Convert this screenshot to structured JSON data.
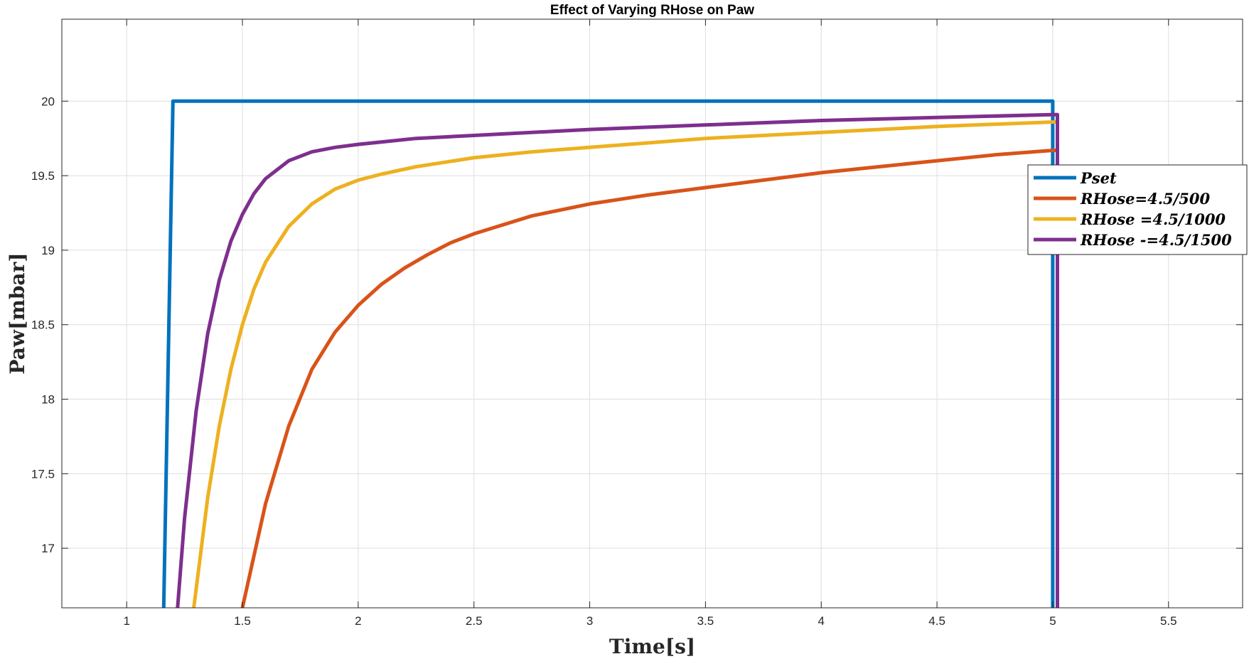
{
  "chart_data": {
    "type": "line",
    "title": "Effect of Varying RHose on Paw",
    "xlabel": "Time[s]",
    "ylabel": "Paw[mbar]",
    "xlim": [
      0.72,
      5.82
    ],
    "ylim": [
      16.6,
      20.55
    ],
    "xticks": [
      1,
      1.5,
      2,
      2.5,
      3,
      3.5,
      4,
      4.5,
      5,
      5.5
    ],
    "xtick_labels": [
      "1",
      "1.5",
      "2",
      "2.5",
      "3",
      "3.5",
      "4",
      "4.5",
      "5",
      "5.5"
    ],
    "yticks": [
      17,
      17.5,
      18,
      18.5,
      19,
      19.5,
      20
    ],
    "ytick_labels": [
      "17",
      "17.5",
      "18",
      "18.5",
      "19",
      "19.5",
      "20"
    ],
    "grid": true,
    "legend_position": "right",
    "series": [
      {
        "name": "Pset",
        "color": "#0072BD",
        "x": [
          1.16,
          1.2,
          5.0,
          5.0
        ],
        "y": [
          16.6,
          20.0,
          20.0,
          16.6
        ]
      },
      {
        "name": "RHose=4.5/500",
        "color": "#D95319",
        "x": [
          1.5,
          1.6,
          1.7,
          1.8,
          1.9,
          2.0,
          2.1,
          2.2,
          2.3,
          2.4,
          2.5,
          2.75,
          3.0,
          3.25,
          3.5,
          3.75,
          4.0,
          4.25,
          4.5,
          4.75,
          5.0,
          5.02,
          5.02
        ],
        "y": [
          16.6,
          17.3,
          17.82,
          18.2,
          18.45,
          18.63,
          18.77,
          18.88,
          18.97,
          19.05,
          19.11,
          19.23,
          19.31,
          19.37,
          19.42,
          19.47,
          19.52,
          19.56,
          19.6,
          19.64,
          19.67,
          19.67,
          16.6
        ]
      },
      {
        "name": "RHose =4.5/1000",
        "color": "#EDB120",
        "x": [
          1.29,
          1.35,
          1.4,
          1.45,
          1.5,
          1.55,
          1.6,
          1.7,
          1.8,
          1.9,
          2.0,
          2.1,
          2.25,
          2.5,
          2.75,
          3.0,
          3.5,
          4.0,
          4.5,
          5.0,
          5.02,
          5.02
        ],
        "y": [
          16.6,
          17.34,
          17.82,
          18.2,
          18.5,
          18.74,
          18.92,
          19.16,
          19.31,
          19.41,
          19.47,
          19.51,
          19.56,
          19.62,
          19.66,
          19.69,
          19.75,
          19.79,
          19.83,
          19.86,
          19.86,
          16.6
        ]
      },
      {
        "name": "RHose -=4.5/1500",
        "color": "#7E2F8E",
        "x": [
          1.22,
          1.25,
          1.3,
          1.35,
          1.4,
          1.45,
          1.5,
          1.55,
          1.6,
          1.7,
          1.8,
          1.9,
          2.0,
          2.25,
          2.5,
          3.0,
          3.5,
          4.0,
          4.5,
          5.0,
          5.02,
          5.02
        ],
        "y": [
          16.6,
          17.2,
          17.92,
          18.44,
          18.8,
          19.06,
          19.24,
          19.38,
          19.48,
          19.6,
          19.66,
          19.69,
          19.71,
          19.75,
          19.77,
          19.81,
          19.84,
          19.87,
          19.89,
          19.91,
          19.91,
          16.6
        ]
      }
    ]
  }
}
